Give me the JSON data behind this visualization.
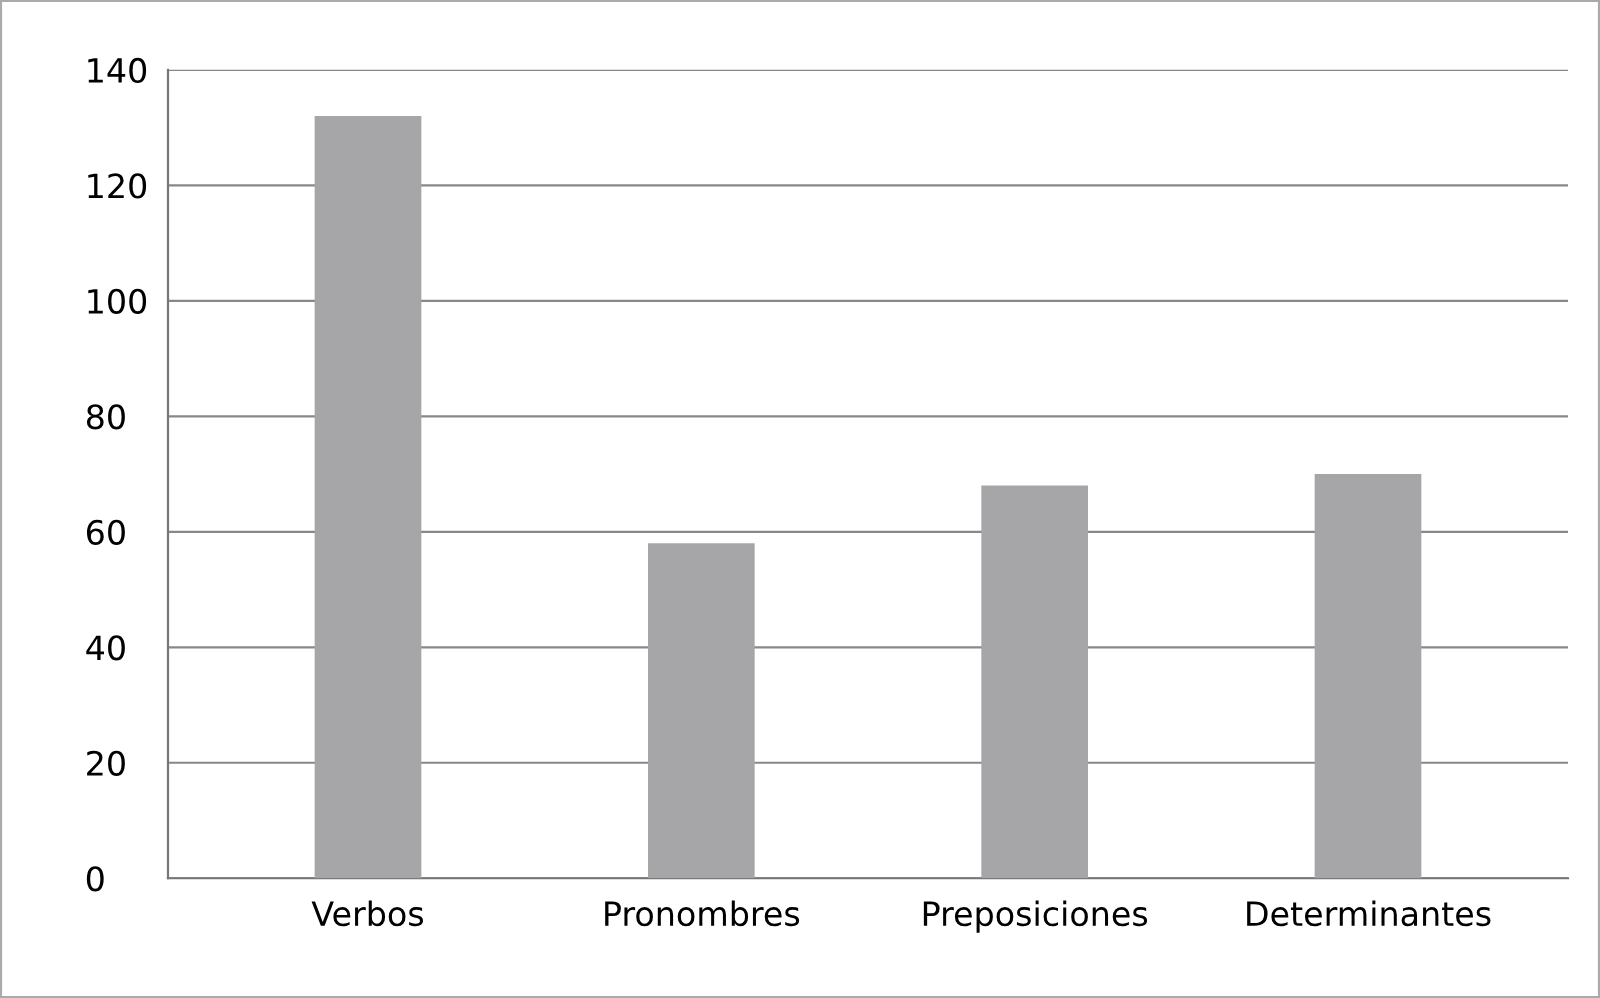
{
  "chart_data": {
    "type": "bar",
    "categories": [
      "Verbos",
      "Pronombres",
      "Preposiciones",
      "Determinantes"
    ],
    "values": [
      132,
      58,
      68,
      70
    ],
    "color": "#a6a6a8",
    "ylim": [
      0,
      140
    ],
    "yticks": [
      0,
      20,
      40,
      60,
      80,
      100,
      120,
      140
    ],
    "grid": "y",
    "legend": false
  }
}
